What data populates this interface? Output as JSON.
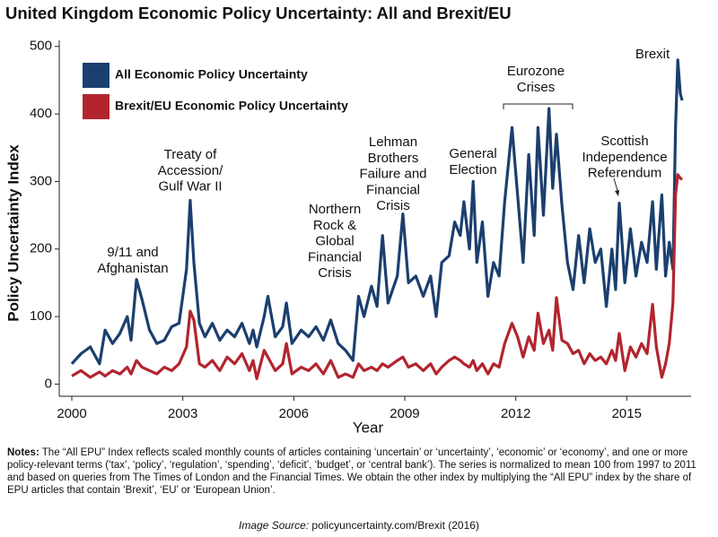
{
  "chart_data": {
    "type": "line",
    "title": "United Kingdom Economic Policy Uncertainty: All and Brexit/EU",
    "xlabel": "Year",
    "ylabel": "Policy Uncertainty Index",
    "x": [
      2000.0,
      2000.25,
      2000.5,
      2000.75,
      2000.9,
      2001.1,
      2001.3,
      2001.5,
      2001.6,
      2001.75,
      2001.9,
      2002.1,
      2002.3,
      2002.5,
      2002.7,
      2002.9,
      2003.1,
      2003.2,
      2003.3,
      2003.45,
      2003.6,
      2003.8,
      2004.0,
      2004.2,
      2004.4,
      2004.6,
      2004.8,
      2004.9,
      2005.0,
      2005.2,
      2005.3,
      2005.5,
      2005.7,
      2005.8,
      2005.95,
      2006.2,
      2006.4,
      2006.6,
      2006.8,
      2007.0,
      2007.2,
      2007.4,
      2007.6,
      2007.75,
      2007.9,
      2008.1,
      2008.25,
      2008.4,
      2008.55,
      2008.8,
      2008.95,
      2009.1,
      2009.3,
      2009.5,
      2009.7,
      2009.85,
      2010.0,
      2010.2,
      2010.35,
      2010.5,
      2010.6,
      2010.75,
      2010.85,
      2010.95,
      2011.1,
      2011.25,
      2011.4,
      2011.55,
      2011.7,
      2011.9,
      2012.05,
      2012.2,
      2012.35,
      2012.5,
      2012.6,
      2012.75,
      2012.9,
      2013.0,
      2013.1,
      2013.25,
      2013.4,
      2013.55,
      2013.7,
      2013.85,
      2014.0,
      2014.15,
      2014.3,
      2014.45,
      2014.6,
      2014.7,
      2014.8,
      2014.95,
      2015.1,
      2015.25,
      2015.4,
      2015.55,
      2015.7,
      2015.8,
      2015.95,
      2016.05,
      2016.15,
      2016.25,
      2016.32,
      2016.38,
      2016.45,
      2016.5
    ],
    "series": [
      {
        "name": "All Economic Policy Uncertainty",
        "color": "#1b3f6e",
        "values": [
          30,
          45,
          55,
          30,
          80,
          60,
          75,
          100,
          65,
          155,
          125,
          80,
          60,
          65,
          85,
          90,
          170,
          272,
          180,
          90,
          70,
          90,
          65,
          80,
          70,
          90,
          60,
          80,
          55,
          100,
          130,
          70,
          85,
          120,
          60,
          80,
          70,
          85,
          65,
          95,
          60,
          50,
          35,
          130,
          100,
          145,
          115,
          220,
          120,
          160,
          252,
          150,
          160,
          130,
          160,
          100,
          180,
          190,
          240,
          220,
          270,
          200,
          300,
          180,
          240,
          130,
          180,
          160,
          270,
          380,
          280,
          180,
          340,
          220,
          380,
          250,
          408,
          290,
          370,
          265,
          180,
          140,
          220,
          150,
          230,
          180,
          200,
          115,
          200,
          140,
          268,
          150,
          230,
          160,
          210,
          180,
          270,
          170,
          280,
          160,
          210,
          170,
          380,
          480,
          430,
          420
        ]
      },
      {
        "name": "Brexit/EU Economic Policy Uncertainty",
        "color": "#b2252f",
        "values": [
          12,
          20,
          10,
          18,
          12,
          20,
          15,
          25,
          15,
          35,
          25,
          20,
          15,
          25,
          20,
          30,
          55,
          108,
          95,
          30,
          25,
          35,
          20,
          40,
          30,
          45,
          20,
          35,
          8,
          50,
          40,
          20,
          30,
          60,
          15,
          25,
          20,
          30,
          15,
          35,
          10,
          15,
          10,
          30,
          20,
          25,
          20,
          30,
          25,
          35,
          40,
          25,
          30,
          20,
          30,
          15,
          25,
          35,
          40,
          35,
          30,
          25,
          35,
          20,
          30,
          15,
          30,
          25,
          60,
          90,
          70,
          40,
          70,
          50,
          105,
          60,
          80,
          50,
          128,
          65,
          60,
          45,
          50,
          30,
          45,
          35,
          40,
          30,
          50,
          35,
          75,
          20,
          55,
          40,
          60,
          45,
          118,
          55,
          10,
          30,
          60,
          120,
          280,
          310,
          305,
          303
        ]
      }
    ],
    "xlim": [
      1999.66,
      2016.74
    ],
    "xticks": [
      2000,
      2003,
      2006,
      2009,
      2012,
      2015
    ],
    "ylim": [
      -18,
      509
    ],
    "yticks": [
      0,
      100,
      200,
      300,
      400,
      500
    ],
    "grid": false,
    "annotations": [
      {
        "lines": [
          "9/11 and",
          "Afghanistan"
        ]
      },
      {
        "lines": [
          "Treaty of",
          "Accession/",
          "Gulf War II"
        ]
      },
      {
        "lines": [
          "Northern",
          "Rock &",
          "Global",
          "Financial",
          "Crisis"
        ]
      },
      {
        "lines": [
          "Lehman",
          "Brothers",
          "Failure and",
          "Financial",
          "Crisis"
        ]
      },
      {
        "lines": [
          "General",
          "Election"
        ]
      },
      {
        "lines": [
          "Eurozone",
          "Crises"
        ]
      },
      {
        "lines": [
          "Scottish",
          "Independence",
          "Referendum"
        ]
      },
      {
        "lines": [
          "Brexit"
        ]
      }
    ],
    "notes_label": "Notes:",
    "notes": "The “All EPU” Index reflects scaled monthly counts of articles containing ‘uncertain’ or ‘uncertainty’, ‘economic’ or ‘economy’, and one or more policy-relevant terms (‘tax’, ‘policy’, ‘regulation’, ‘spending’, ‘deficit’, ‘budget’, or ‘central bank’). The series is normalized to mean 100 from 1997 to 2011 and based on queries from The Times of London and the Financial Times. We obtain the other index by multiplying the “All EPU” index by the share of EPU articles that contain ‘Brexit’, ‘EU’ or ‘European Union’.",
    "source_label": "Image Source:",
    "source": "policyuncertainty.com/Brexit (2016)"
  }
}
